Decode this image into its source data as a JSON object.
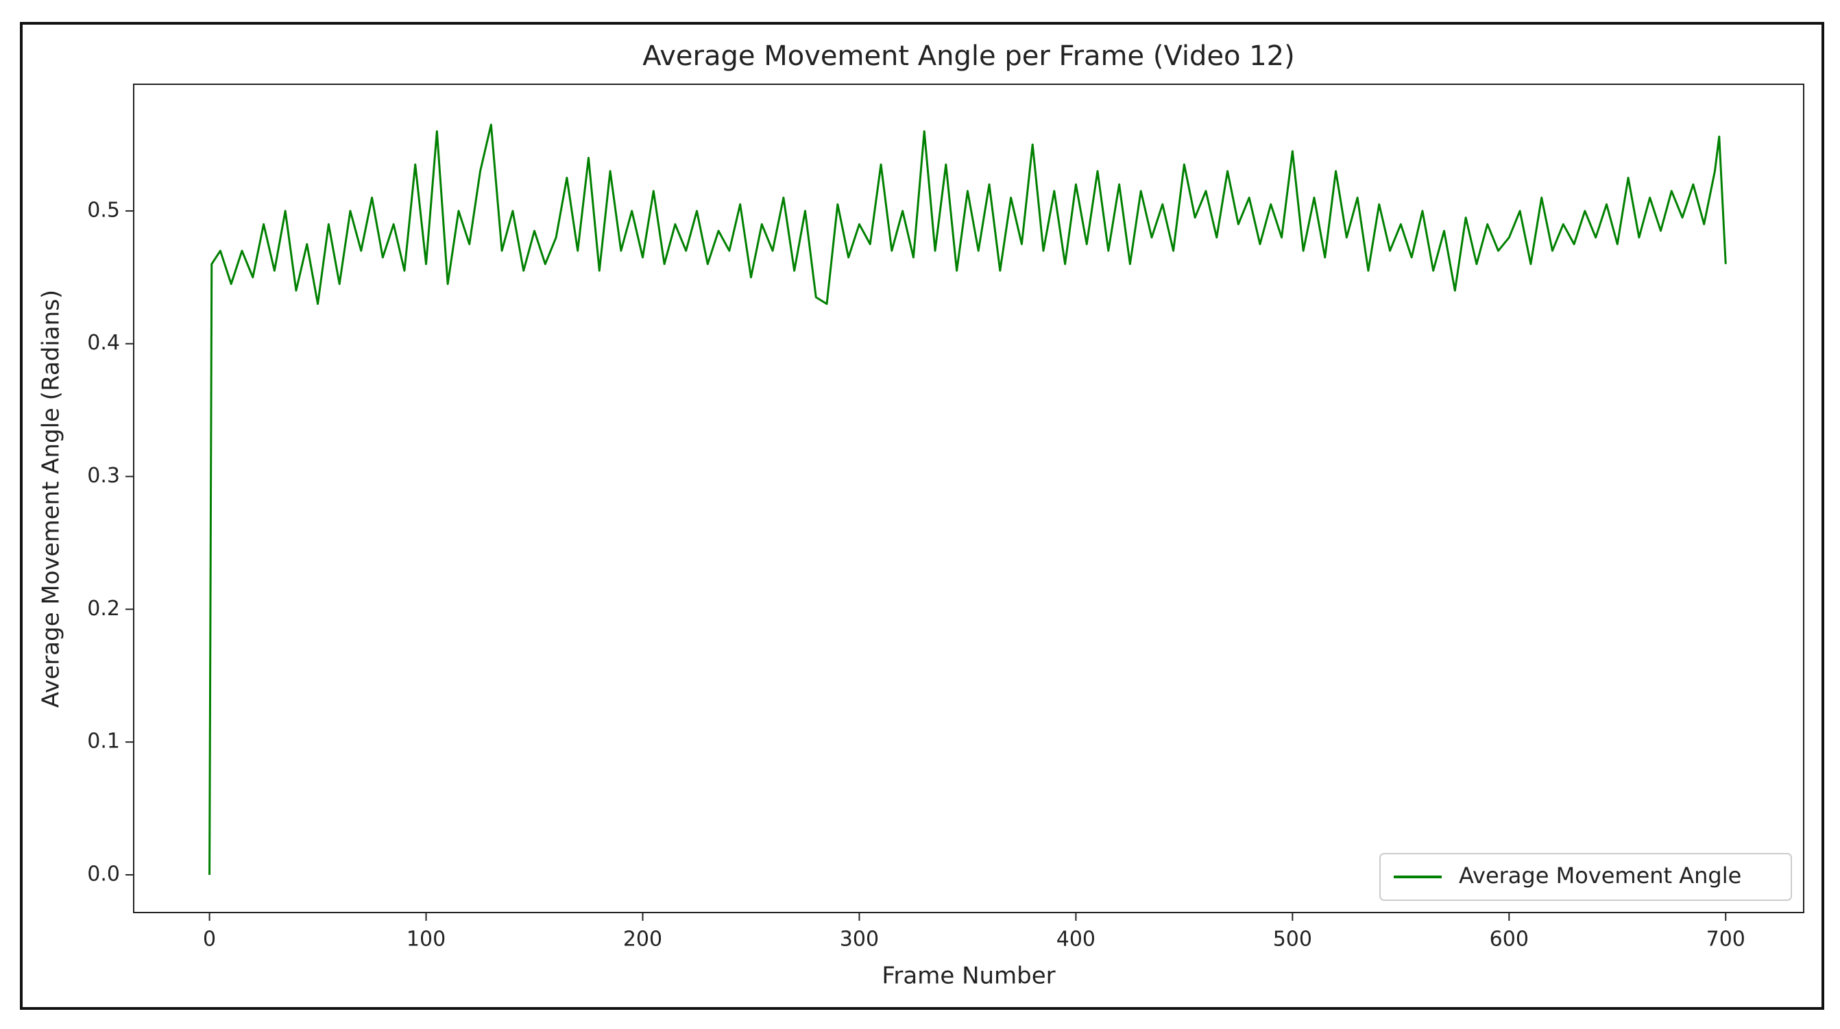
{
  "chart_data": {
    "type": "line",
    "title": "Average Movement Angle per Frame (Video 12)",
    "x_label": "Frame Number",
    "y_label": "Average Movement Angle (Radians)",
    "legend_position": "lower right",
    "xlim": [
      -35,
      736
    ],
    "ylim": [
      -0.0284,
      0.5954
    ],
    "xticks": [
      0,
      100,
      200,
      300,
      400,
      500,
      600,
      700
    ],
    "yticks": [
      {
        "value": 0,
        "label": "0.0"
      },
      0.1,
      0.2,
      0.3,
      0.4,
      0.5
    ],
    "x": [
      0,
      1,
      5,
      10,
      15,
      20,
      25,
      30,
      35,
      40,
      45,
      50,
      55,
      60,
      65,
      70,
      75,
      80,
      85,
      90,
      95,
      100,
      105,
      110,
      115,
      120,
      125,
      130,
      135,
      140,
      145,
      150,
      155,
      160,
      165,
      170,
      175,
      180,
      185,
      190,
      195,
      200,
      205,
      210,
      215,
      220,
      225,
      230,
      235,
      240,
      245,
      250,
      255,
      260,
      265,
      270,
      275,
      280,
      285,
      290,
      295,
      300,
      305,
      310,
      315,
      320,
      325,
      330,
      335,
      340,
      345,
      350,
      355,
      360,
      365,
      370,
      375,
      380,
      385,
      390,
      395,
      400,
      405,
      410,
      415,
      420,
      425,
      430,
      435,
      440,
      445,
      450,
      455,
      460,
      465,
      470,
      475,
      480,
      485,
      490,
      495,
      500,
      505,
      510,
      515,
      520,
      525,
      530,
      535,
      540,
      545,
      550,
      555,
      560,
      565,
      570,
      575,
      580,
      585,
      590,
      595,
      600,
      605,
      610,
      615,
      620,
      625,
      630,
      635,
      640,
      645,
      650,
      655,
      660,
      665,
      670,
      675,
      680,
      685,
      690,
      695,
      697,
      700
    ],
    "series": [
      {
        "name": "Average Movement Angle",
        "color": "#008000",
        "values": [
          0,
          0.46,
          0.47,
          0.445,
          0.47,
          0.45,
          0.49,
          0.455,
          0.5,
          0.44,
          0.475,
          0.43,
          0.49,
          0.445,
          0.5,
          0.47,
          0.51,
          0.465,
          0.49,
          0.455,
          0.535,
          0.46,
          0.56,
          0.445,
          0.5,
          0.475,
          0.53,
          0.565,
          0.47,
          0.5,
          0.455,
          0.485,
          0.46,
          0.48,
          0.525,
          0.47,
          0.54,
          0.455,
          0.53,
          0.47,
          0.5,
          0.465,
          0.515,
          0.46,
          0.49,
          0.47,
          0.5,
          0.46,
          0.485,
          0.47,
          0.505,
          0.45,
          0.49,
          0.47,
          0.51,
          0.455,
          0.5,
          0.435,
          0.43,
          0.505,
          0.465,
          0.49,
          0.475,
          0.535,
          0.47,
          0.5,
          0.465,
          0.56,
          0.47,
          0.535,
          0.455,
          0.515,
          0.47,
          0.52,
          0.455,
          0.51,
          0.475,
          0.55,
          0.47,
          0.515,
          0.46,
          0.52,
          0.475,
          0.53,
          0.47,
          0.52,
          0.46,
          0.515,
          0.48,
          0.505,
          0.47,
          0.535,
          0.495,
          0.515,
          0.48,
          0.53,
          0.49,
          0.51,
          0.475,
          0.505,
          0.48,
          0.545,
          0.47,
          0.51,
          0.465,
          0.53,
          0.48,
          0.51,
          0.455,
          0.505,
          0.47,
          0.49,
          0.465,
          0.5,
          0.455,
          0.485,
          0.44,
          0.495,
          0.46,
          0.49,
          0.47,
          0.48,
          0.5,
          0.46,
          0.51,
          0.47,
          0.49,
          0.475,
          0.5,
          0.48,
          0.505,
          0.475,
          0.525,
          0.48,
          0.51,
          0.485,
          0.515,
          0.495,
          0.52,
          0.49,
          0.53,
          0.556,
          0.46
        ]
      }
    ]
  }
}
